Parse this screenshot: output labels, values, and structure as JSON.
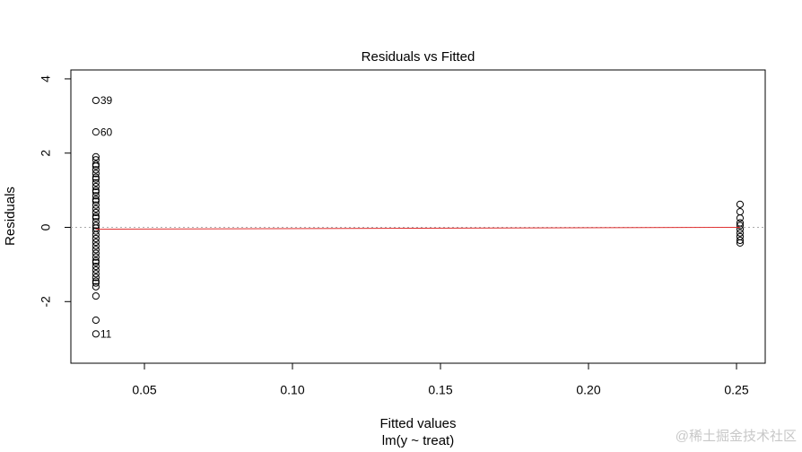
{
  "chart_data": {
    "type": "scatter",
    "title": "Residuals vs Fitted",
    "x_label": "Fitted values",
    "subtitle": "lm(y ~ treat)",
    "y_label": "Residuals",
    "xlim": [
      0.02515,
      0.2597
    ],
    "ylim": [
      -3.66,
      4.24
    ],
    "xticks": [
      0.05,
      {
        "value": 0.1,
        "label": "0.10"
      },
      0.15,
      {
        "value": 0.2,
        "label": "0.20"
      },
      0.25
    ],
    "yticks": [
      -2,
      0,
      2,
      4
    ],
    "series": [
      {
        "color": "#000000",
        "x": [
          0.0336,
          0.0336,
          0.0336,
          0.0336,
          0.0336,
          0.0336,
          0.0336,
          0.0336,
          0.0336,
          0.0336,
          0.0336,
          0.0336,
          0.0336,
          0.0336,
          0.0336,
          0.0336,
          0.0336,
          0.0336,
          0.0336,
          0.0336,
          0.0336,
          0.0336,
          0.0336,
          0.0336,
          0.0336,
          0.0336,
          0.0336,
          0.0336,
          0.0336,
          0.0336,
          0.0336,
          0.0336,
          0.0336,
          0.0336,
          0.0336,
          0.0336,
          0.0336,
          0.0336,
          0.0336,
          0.0336,
          0.0336,
          0.0336,
          0.0336,
          0.0336,
          0.0336,
          0.2512,
          0.2512,
          0.2512,
          0.2512,
          0.2512,
          0.2512,
          0.2512,
          0.2512,
          0.2512,
          0.2512
        ],
        "y": [
          3.42,
          2.57,
          1.9,
          1.82,
          1.7,
          1.65,
          1.55,
          1.45,
          1.35,
          1.3,
          1.2,
          1.1,
          1.0,
          0.95,
          0.85,
          0.75,
          0.7,
          0.6,
          0.5,
          0.4,
          0.3,
          0.25,
          0.15,
          0.05,
          -0.02,
          -0.1,
          -0.2,
          -0.3,
          -0.4,
          -0.5,
          -0.6,
          -0.7,
          -0.8,
          -0.9,
          -0.95,
          -1.05,
          -1.15,
          -1.25,
          -1.35,
          -1.45,
          -1.5,
          -1.6,
          -1.85,
          -2.5,
          -2.87,
          0.62,
          0.42,
          0.25,
          0.12,
          0.05,
          -0.05,
          -0.15,
          -0.25,
          -0.35,
          -0.42
        ],
        "point_labels": [
          "39",
          "60",
          null,
          null,
          null,
          null,
          null,
          null,
          null,
          null,
          null,
          null,
          null,
          null,
          null,
          null,
          null,
          null,
          null,
          null,
          null,
          null,
          null,
          null,
          null,
          null,
          null,
          null,
          null,
          null,
          null,
          null,
          null,
          null,
          null,
          null,
          null,
          null,
          null,
          null,
          null,
          null,
          null,
          null,
          "11",
          null,
          null,
          null,
          null,
          null,
          null,
          null,
          null,
          null,
          null
        ]
      }
    ],
    "smooth": {
      "color": "#e03030",
      "x": [
        0.0336,
        0.2512
      ],
      "y": [
        -0.05,
        0.0
      ]
    },
    "hline": 0,
    "watermark": "@稀土掘金技术社区"
  }
}
